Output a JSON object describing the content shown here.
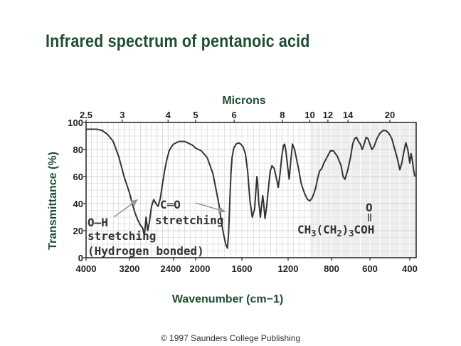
{
  "page": {
    "title": "Infrared spectrum of pentanoic acid",
    "copyright": "© 1997 Saunders College Publishing"
  },
  "colors": {
    "title": "#1f4e32",
    "curve": "#333333",
    "arrow": "#999999",
    "grid_bg": "#e9e9e9"
  },
  "chart_data": {
    "type": "line",
    "title": "Infrared spectrum of pentanoic acid",
    "xlabel": "Wavenumber (cm−1)",
    "ylabel": "Transmittance (%)",
    "top_axis_label": "Microns",
    "xlim": [
      4000,
      350
    ],
    "ylim": [
      0,
      100
    ],
    "grid": true,
    "x_ticks": [
      4000,
      3200,
      2400,
      2000,
      1600,
      1200,
      800,
      600,
      400
    ],
    "x_tick_labels": [
      "4000",
      "3200",
      "2400",
      "2000",
      "1600",
      "1200",
      "800",
      "600",
      "400"
    ],
    "y_ticks": [
      0,
      20,
      40,
      60,
      80,
      100
    ],
    "top_ticks": [
      2.5,
      3,
      4,
      5,
      6,
      8,
      10,
      12,
      14,
      20
    ],
    "top_tick_labels": [
      "2.5",
      "3",
      "4",
      "5",
      "6",
      "8",
      "10",
      "12",
      "14",
      "20"
    ],
    "series": [
      {
        "x": [
          4000,
          3900,
          3800,
          3700,
          3600,
          3500,
          3400,
          3300,
          3200,
          3150,
          3100,
          3050,
          3000,
          2960,
          2930,
          2900,
          2870,
          2840,
          2800,
          2760,
          2720,
          2680,
          2640,
          2600,
          2560,
          2520,
          2480,
          2440,
          2400,
          2350,
          2300,
          2250,
          2200,
          2150,
          2100,
          2050,
          2000,
          1950,
          1900,
          1850,
          1800,
          1780,
          1760,
          1740,
          1725,
          1715,
          1705,
          1695,
          1685,
          1670,
          1650,
          1630,
          1610,
          1590,
          1570,
          1550,
          1530,
          1510,
          1490,
          1470,
          1465,
          1455,
          1440,
          1430,
          1420,
          1412,
          1400,
          1385,
          1370,
          1355,
          1340,
          1320,
          1300,
          1285,
          1270,
          1255,
          1240,
          1230,
          1220,
          1205,
          1190,
          1175,
          1160,
          1140,
          1120,
          1100,
          1080,
          1060,
          1040,
          1020,
          1000,
          980,
          960,
          945,
          930,
          910,
          890,
          870,
          850,
          830,
          810,
          790,
          770,
          750,
          740,
          730,
          715,
          700,
          690,
          680,
          670,
          660,
          650,
          640,
          630,
          620,
          610,
          600,
          590,
          580,
          565,
          550,
          535,
          520,
          505,
          490,
          475,
          460,
          450,
          440,
          430,
          420,
          410,
          400,
          390,
          380,
          370,
          360
        ],
        "y": [
          95,
          95,
          95,
          94,
          91,
          86,
          75,
          60,
          48,
          40,
          33,
          28,
          24,
          22,
          16,
          30,
          20,
          26,
          38,
          43,
          40,
          38,
          44,
          55,
          65,
          73,
          79,
          82,
          84,
          85,
          86,
          86,
          86,
          85,
          84,
          83,
          81,
          79,
          74,
          62,
          40,
          28,
          18,
          10,
          7,
          18,
          40,
          62,
          74,
          81,
          84,
          85,
          84,
          82,
          77,
          64,
          42,
          30,
          36,
          60,
          57,
          42,
          30,
          38,
          46,
          40,
          29,
          38,
          52,
          64,
          68,
          66,
          58,
          52,
          62,
          75,
          83,
          84,
          79,
          68,
          58,
          72,
          84,
          80,
          72,
          64,
          55,
          50,
          46,
          43,
          42,
          44,
          48,
          52,
          58,
          64,
          66,
          70,
          73,
          76,
          79,
          79,
          75,
          68,
          60,
          58,
          65,
          75,
          84,
          88,
          89,
          86,
          84,
          80,
          84,
          89,
          88,
          84,
          80,
          82,
          88,
          92,
          94,
          94,
          92,
          88,
          80,
          72,
          65,
          70,
          78,
          85,
          80,
          70,
          77,
          72,
          65,
          60
        ]
      }
    ],
    "molecule": {
      "formula_parts": [
        "CH",
        "3",
        "(CH",
        "2",
        ")",
        "3",
        "COH"
      ],
      "carbonyl_oxygen": "O"
    },
    "annotations": [
      {
        "lines": [
          "O—H",
          "stretching",
          "(Hydrogen bonded)"
        ],
        "arrow_to": [
          3050,
          28
        ]
      },
      {
        "lines": [
          "C═O",
          "stretching"
        ],
        "arrow_to": [
          1705,
          22
        ]
      }
    ]
  }
}
